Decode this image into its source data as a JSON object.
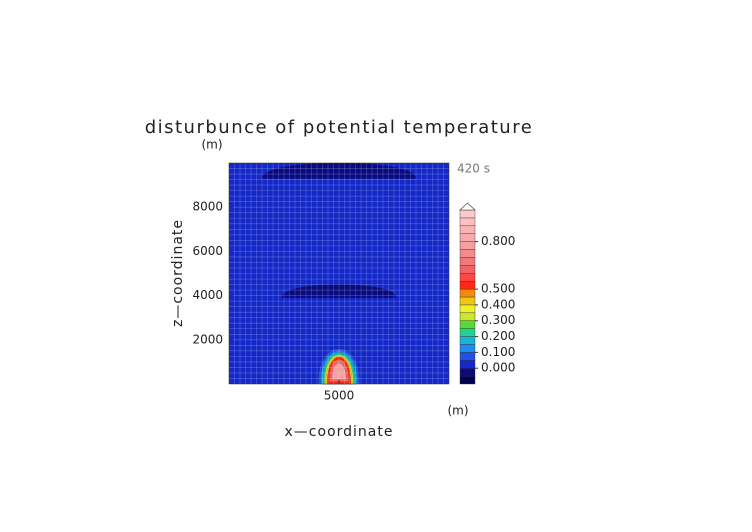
{
  "chart_data": {
    "type": "contour",
    "title": "disturbunce of potential temperature",
    "y_unit": "(m)",
    "x_unit": "(m)",
    "time_label": "420 s",
    "xlabel": "x—coordinate",
    "ylabel": "z—coordinate",
    "xlim": [
      0,
      10000
    ],
    "ylim": [
      0,
      10000
    ],
    "xticks": [
      5000
    ],
    "yticks": [
      2000,
      4000,
      6000,
      8000
    ],
    "grid": true,
    "background_level": 0.0,
    "contours": [
      {
        "level": -0.05,
        "cx": 5000,
        "z0": 9300,
        "hw": 3500,
        "top": 10000
      },
      {
        "level": -0.05,
        "cx": 5000,
        "z0": 3900,
        "hw": 2600,
        "top": 4500
      },
      {
        "level": 0.05,
        "cx": 5000,
        "z0": 0,
        "hw": 950,
        "top": 1600
      },
      {
        "level": 0.1,
        "cx": 5000,
        "z0": 0,
        "hw": 850,
        "top": 1500
      },
      {
        "level": 0.15,
        "cx": 5000,
        "z0": 0,
        "hw": 780,
        "top": 1430
      },
      {
        "level": 0.2,
        "cx": 5000,
        "z0": 0,
        "hw": 720,
        "top": 1370
      },
      {
        "level": 0.3,
        "cx": 5000,
        "z0": 0,
        "hw": 660,
        "top": 1320
      },
      {
        "level": 0.4,
        "cx": 5000,
        "z0": 0,
        "hw": 600,
        "top": 1270
      },
      {
        "level": 0.5,
        "cx": 5000,
        "z0": 0,
        "hw": 540,
        "top": 1220
      },
      {
        "level": 0.6,
        "cx": 5000,
        "z0": 100,
        "hw": 450,
        "top": 1120
      },
      {
        "level": 0.75,
        "cx": 5000,
        "z0": 200,
        "hw": 320,
        "top": 950
      }
    ],
    "colorbar": {
      "lim": [
        -0.1,
        1.0
      ],
      "bounds": [
        -0.1,
        -0.05,
        0.0,
        0.05,
        0.1,
        0.15,
        0.2,
        0.25,
        0.3,
        0.35,
        0.4,
        0.45,
        0.5,
        0.55,
        0.6,
        0.65,
        0.7,
        0.75,
        0.8,
        0.85,
        0.9,
        0.95,
        1.0
      ],
      "colors": [
        "#000050",
        "#0a0a80",
        "#1428c8",
        "#2050e6",
        "#1e8cf0",
        "#18b4dc",
        "#20d296",
        "#50dc3c",
        "#c8e632",
        "#f0f028",
        "#f0c814",
        "#f08c0a",
        "#ff2814",
        "#ff4646",
        "#f06464",
        "#f07878",
        "#f08c8c",
        "#f4a0a0",
        "#f8aaaa",
        "#f8b4b4",
        "#fcc0c0",
        "#fccaca"
      ],
      "ticks": [
        {
          "value": 0.0,
          "label": "0.000"
        },
        {
          "value": 0.1,
          "label": "0.100"
        },
        {
          "value": 0.2,
          "label": "0.200"
        },
        {
          "value": 0.3,
          "label": "0.300"
        },
        {
          "value": 0.4,
          "label": "0.400"
        },
        {
          "value": 0.5,
          "label": "0.500"
        },
        {
          "value": 0.8,
          "label": "0.800"
        }
      ]
    }
  }
}
